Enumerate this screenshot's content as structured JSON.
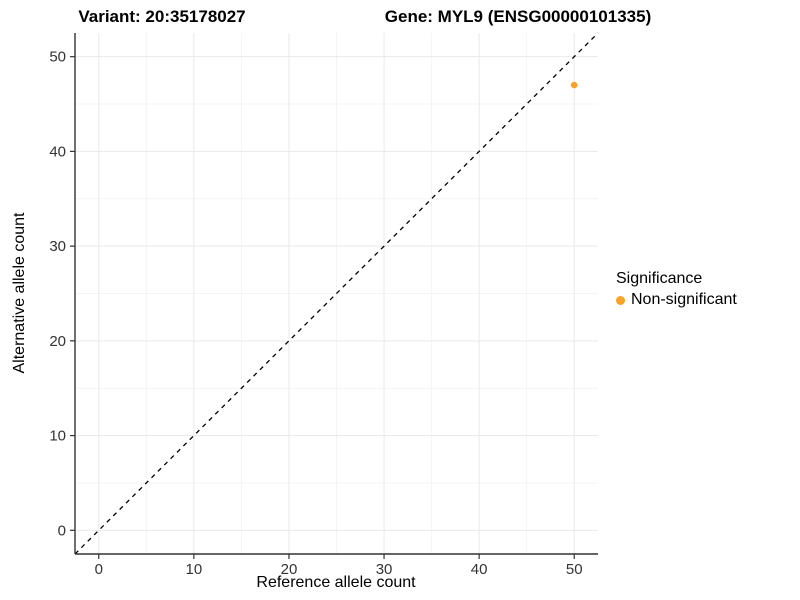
{
  "titles": {
    "variant": "Variant: 20:35178027",
    "gene": "Gene: MYL9 (ENSG00000101335)"
  },
  "chart_data": {
    "type": "scatter",
    "xlabel": "Reference allele count",
    "ylabel": "Alternative allele count",
    "xlim": [
      -2.5,
      52.5
    ],
    "ylim": [
      -2.5,
      52.5
    ],
    "xticks": [
      0,
      10,
      20,
      30,
      40,
      50
    ],
    "yticks": [
      0,
      10,
      20,
      30,
      40,
      50
    ],
    "grid": "major and minor, very light gray, white panel background",
    "points": [
      {
        "x": 50,
        "y": 47,
        "series": "Non-significant"
      }
    ],
    "reference_line": {
      "slope": 1,
      "intercept": 0,
      "style": "dashed",
      "color": "#000000"
    },
    "series": [
      {
        "name": "Non-significant",
        "color": "#F8A12C"
      }
    ],
    "legend": {
      "title": "Significance",
      "position": "right",
      "items": [
        {
          "label": "Non-significant",
          "color": "#F8A12C"
        }
      ]
    },
    "colors": {
      "axis_line": "#333333",
      "tick_label": "#333333",
      "grid_major": "#E9E9E9",
      "grid_minor": "#F4F4F4"
    }
  }
}
